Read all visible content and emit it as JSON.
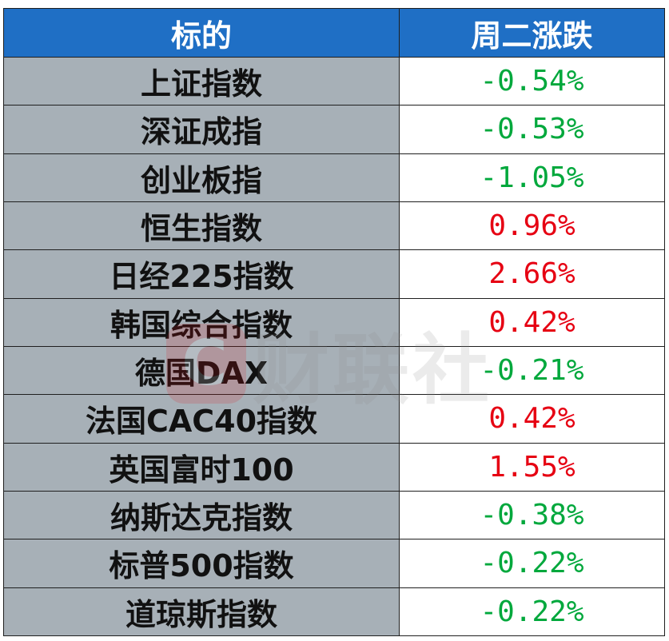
{
  "table": {
    "headers": {
      "name": "标的",
      "change": "周二涨跌"
    },
    "rows": [
      {
        "name": "上证指数",
        "change": "-0.54%",
        "dir": "down"
      },
      {
        "name": "深证成指",
        "change": "-0.53%",
        "dir": "down"
      },
      {
        "name": "创业板指",
        "change": "-1.05%",
        "dir": "down"
      },
      {
        "name": "恒生指数",
        "change": "0.96%",
        "dir": "up"
      },
      {
        "name": "日经225指数",
        "change": "2.66%",
        "dir": "up"
      },
      {
        "name": "韩国综合指数",
        "change": "0.42%",
        "dir": "up"
      },
      {
        "name": "德国DAX",
        "change": "-0.21%",
        "dir": "down"
      },
      {
        "name": "法国CAC40指数",
        "change": "0.42%",
        "dir": "up"
      },
      {
        "name": "英国富时100",
        "change": "1.55%",
        "dir": "up"
      },
      {
        "name": "纳斯达克指数",
        "change": "-0.38%",
        "dir": "down"
      },
      {
        "name": "标普500指数",
        "change": "-0.22%",
        "dir": "down"
      },
      {
        "name": "道琼斯指数",
        "change": "-0.22%",
        "dir": "down"
      }
    ]
  },
  "colors": {
    "header_bg": "#1f6fc5",
    "name_bg": "#a7b0b7",
    "up": "#e60012",
    "down": "#00a83c"
  },
  "watermark": {
    "logo_letter": "C",
    "text": "财联社"
  }
}
